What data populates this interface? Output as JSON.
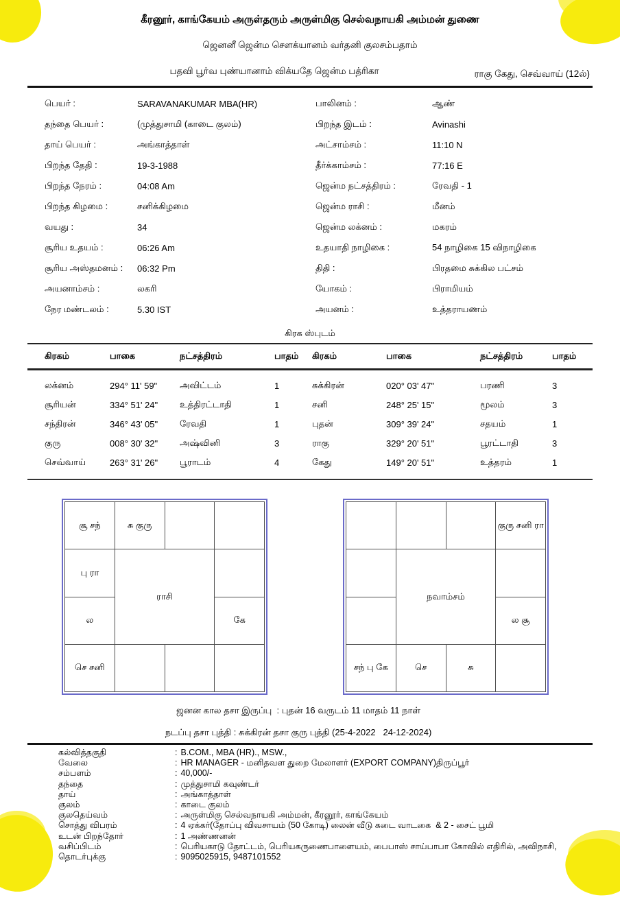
{
  "page": {
    "accent_yellow": "#F7EB0D",
    "accent_yellow_light": "#FAF15A",
    "chart_border_blue": "#6A6AC9"
  },
  "header": {
    "line1": "கீரனூர், காங்கேயம் அருள்தரும் அருள்மிகு செல்வநாயகி அம்மன் துணை",
    "line2": "ஜெனனீ ஜென்ம சௌக்யானம் வர்தனி குலசம்பதாம்",
    "line3": "பதவி பூர்வ புண்யானாம் விக்யதே ஜென்ம பத்ரிகா",
    "note": "ராகு கேது, செவ்வாய் (12ல்)"
  },
  "details_left": [
    {
      "label": "பெயர் :",
      "value": "SARAVANAKUMAR MBA(HR)"
    },
    {
      "label": "தந்தை பெயர் :",
      "value": "(முத்துசாமி (காடை குலம்)"
    },
    {
      "label": "தாய் பெயர் :",
      "value": "அங்காத்தாள்"
    },
    {
      "label": "பிறந்த தேதி :",
      "value": "19-3-1988"
    },
    {
      "label": "பிறந்த நேரம் :",
      "value": "04:08 Am"
    },
    {
      "label": "பிறந்த கிழமை :",
      "value": "சனிக்கிழமை"
    },
    {
      "label": "வயது :",
      "value": "34"
    },
    {
      "label": "சூரிய உதயம் :",
      "value": "06:26 Am"
    },
    {
      "label": "சூரிய அஸ்தமனம் :",
      "value": "06:32 Pm"
    },
    {
      "label": "அயனாம்சம் :",
      "value": "லகரி"
    },
    {
      "label": "நேர மண்டலம் :",
      "value": "5.30 IST"
    }
  ],
  "details_right": [
    {
      "label": "பாலினம் :",
      "value": "ஆண்"
    },
    {
      "label": "பிறந்த இடம் :",
      "value": "Avinashi"
    },
    {
      "label": "அட்சாம்சம் :",
      "value": "11:10 N"
    },
    {
      "label": "தீர்க்காம்சம் :",
      "value": "77:16 E"
    },
    {
      "label": "ஜென்ம நட்சத்திரம் :",
      "value": "ரேவதி - 1"
    },
    {
      "label": "ஜென்ம ராசி :",
      "value": "மீனம்"
    },
    {
      "label": "ஜென்ம லக்னம் :",
      "value": "மகரம்"
    },
    {
      "label": "உதயாதி நாழிகை :",
      "value": "54 நாழிகை 15 விநாழிகை"
    },
    {
      "label": "திதி :",
      "value": "பிரதமை சுக்கில பட்சம்"
    },
    {
      "label": "யோகம் :",
      "value": "பிராமியம்"
    },
    {
      "label": "அயனம் :",
      "value": "உத்தராயணம்"
    }
  ],
  "table": {
    "title": "கிரக ஸ்புடம்",
    "headers": [
      "கிரகம்",
      "பாகை",
      "நட்சத்திரம்",
      "பாதம்",
      "கிரகம்",
      "பாகை",
      "நட்சத்திரம்",
      "பாதம்"
    ],
    "rows": [
      [
        "லக்னம்",
        "294° 11' 59\"",
        "அவிட்டம்",
        "1",
        "சுக்கிரன்",
        "020° 03' 47\"",
        "பரணி",
        "3"
      ],
      [
        "சூரியன்",
        "334° 51' 24\"",
        "உத்திரட்டாதி",
        "1",
        "சனி",
        "248° 25' 15\"",
        "மூலம்",
        "3"
      ],
      [
        "சந்திரன்",
        "346° 43' 05\"",
        "ரேவதி",
        "1",
        "புதன்",
        "309° 39' 24\"",
        "சதயம்",
        "1"
      ],
      [
        "குரு",
        "008° 30' 32\"",
        "அஷ்வினி",
        "3",
        "ராகு",
        "329° 20' 51\"",
        "பூரட்டாதி",
        "3"
      ],
      [
        "செவ்வாய்",
        "263° 31' 26\"",
        "பூராடம்",
        "4",
        "கேது",
        "149° 20' 51\"",
        "உத்தரம்",
        "1"
      ]
    ]
  },
  "charts": {
    "rasi": {
      "title": "ராசி",
      "cells": [
        "சூ சந்",
        "சு குரு",
        "",
        "",
        "பு ரா",
        "",
        "ல",
        "கே",
        "செ சனி",
        "",
        "",
        ""
      ]
    },
    "navamsam": {
      "title": "நவாம்சம்",
      "cells": [
        "",
        "",
        "",
        "குரு சனி ரா",
        "",
        "",
        "",
        "ல சூ",
        "சந் பு கே",
        "செ",
        "சு",
        ""
      ]
    }
  },
  "dasa": {
    "line1": "ஜனன கால தசா இருப்பு  : புதன் 16 வருடம் 11 மாதம் 11 நாள்",
    "line2": "நடப்பு தசா புத்தி : சுக்கிரன் தசா குரு புத்தி (25-4-2022   24-12-2024)"
  },
  "footer": {
    "separator": ":",
    "rows": [
      {
        "label": "கல்வித்தகுதி",
        "value": "B.COM., MBA (HR)., MSW.,"
      },
      {
        "label": "வேலை",
        "value": "HR MANAGER - மனிதவள துறை மேலாளர் (EXPORT COMPANY)திருப்பூர்"
      },
      {
        "label": "சம்பளம்",
        "value": "40,000/-"
      },
      {
        "label": "தந்தை",
        "value": "முத்துசாமி கவுண்டர்"
      },
      {
        "label": "தாய்",
        "value": "அங்காத்தாள்"
      },
      {
        "label": "குலம்",
        "value": "காடை குலம்"
      },
      {
        "label": "குலதெய்வம்",
        "value": "அருள்மிகு செல்வநாயகி அம்மன், கீரனூர், காங்கேயம்"
      },
      {
        "label": "சொத்து விபரம்",
        "value": "4 ஏக்கர்(தோப்பு விவசாயம் (50 கோடி) லைன் வீடு கடை வாடகை  & 2 - சைட் பூமி"
      },
      {
        "label": "உடன் பிறந்தோர்",
        "value": "1 அண்ணனன்"
      },
      {
        "label": "வசிப்பிடம்",
        "value": "பெரியகாடு தோட்டம், பெரியகருணைபாளையம், பைபாஸ் சாய்பாபா கோவில் எதிரில், அவிநாசி,"
      },
      {
        "label": "தொடர்புக்கு",
        "value": "9095025915, 9487101552"
      }
    ]
  }
}
